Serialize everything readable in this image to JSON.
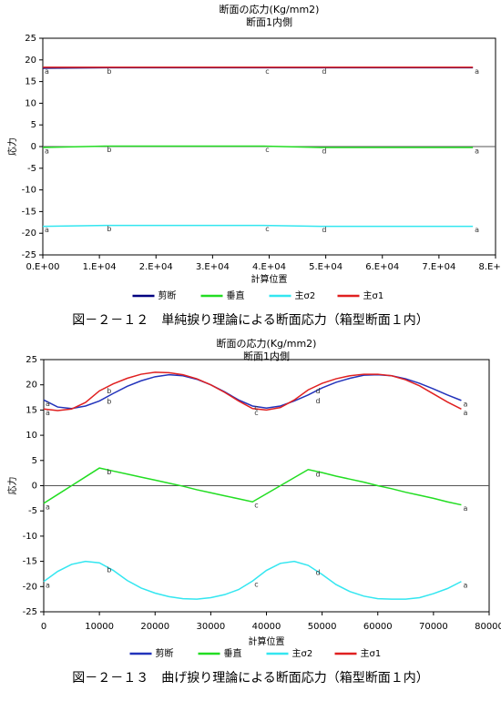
{
  "chart_data": [
    {
      "type": "line",
      "title": "断面の応力(Kg/mm2)",
      "subtitle": "断面1内側",
      "x_label": "計算位置",
      "y_label": "応力",
      "caption": "図－２－１２　単純捩り理論による断面応力（箱型断面１内）",
      "x": [
        0,
        11000,
        39000,
        49000,
        76000
      ],
      "series": [
        {
          "name": "剪断",
          "color": "#000080",
          "values": [
            18.1,
            18.2,
            18.2,
            18.2,
            18.2
          ]
        },
        {
          "name": "垂直",
          "color": "#22dd22",
          "values": [
            -0.2,
            0.1,
            0.1,
            -0.2,
            -0.2
          ]
        },
        {
          "name": "主σ2",
          "color": "#33e6f0",
          "values": [
            -18.4,
            -18.2,
            -18.2,
            -18.4,
            -18.4
          ]
        },
        {
          "name": "主σ1",
          "color": "#e02020",
          "values": [
            18.3,
            18.3,
            18.3,
            18.3,
            18.3
          ]
        }
      ],
      "annotations": [
        {
          "text": "a",
          "x": 0,
          "y": 18.2
        },
        {
          "text": "a",
          "x": 0,
          "y": -0.2
        },
        {
          "text": "a",
          "x": 0,
          "y": -18.4
        },
        {
          "text": "b",
          "x": 11000,
          "y": 18.2
        },
        {
          "text": "b",
          "x": 11000,
          "y": 0.1
        },
        {
          "text": "b",
          "x": 11000,
          "y": -18.2
        },
        {
          "text": "c",
          "x": 39000,
          "y": 18.2
        },
        {
          "text": "c",
          "x": 39000,
          "y": 0.1
        },
        {
          "text": "c",
          "x": 39000,
          "y": -18.2
        },
        {
          "text": "d",
          "x": 49000,
          "y": 18.2
        },
        {
          "text": "d",
          "x": 49000,
          "y": -0.2
        },
        {
          "text": "d",
          "x": 49000,
          "y": -18.4
        },
        {
          "text": "a",
          "x": 76000,
          "y": 18.2
        },
        {
          "text": "a",
          "x": 76000,
          "y": -0.2
        },
        {
          "text": "a",
          "x": 76000,
          "y": -18.4
        }
      ],
      "xlim": [
        0,
        80000
      ],
      "xticks": [
        {
          "value": 0,
          "label": "0.E+00"
        },
        {
          "value": 10000,
          "label": "1.E+04"
        },
        {
          "value": 20000,
          "label": "2.E+04"
        },
        {
          "value": 30000,
          "label": "3.E+04"
        },
        {
          "value": 40000,
          "label": "4.E+04"
        },
        {
          "value": 50000,
          "label": "5.E+04"
        },
        {
          "value": 60000,
          "label": "6.E+04"
        },
        {
          "value": 70000,
          "label": "7.E+04"
        },
        {
          "value": 80000,
          "label": "8.E+04"
        }
      ],
      "ylim": [
        -25,
        25
      ],
      "yticks": [
        -25,
        -20,
        -15,
        -10,
        -5,
        0,
        5,
        10,
        15,
        20,
        25
      ]
    },
    {
      "type": "line",
      "title": "断面の応力(Kg/mm2)",
      "subtitle": "断面1内側",
      "x_label": "計算位置",
      "y_label": "応力",
      "caption": "図－２－１３　曲げ捩り理論による断面応力（箱型断面１内）",
      "x": [
        0,
        2500,
        5000,
        7500,
        10000,
        12500,
        15000,
        17500,
        20000,
        22500,
        25000,
        27500,
        30000,
        32500,
        35000,
        37500,
        40000,
        42500,
        45000,
        47500,
        50000,
        52500,
        55000,
        57500,
        60000,
        62500,
        65000,
        67500,
        70000,
        72500,
        75000
      ],
      "series": [
        {
          "name": "剪断",
          "color": "#2233bb",
          "values": [
            17,
            15.6,
            15.3,
            15.8,
            16.8,
            18.3,
            19.7,
            20.8,
            21.6,
            22.0,
            21.8,
            21.1,
            20.0,
            18.6,
            17.0,
            15.8,
            15.4,
            15.8,
            16.8,
            18.0,
            19.4,
            20.5,
            21.3,
            21.9,
            22.0,
            21.8,
            21.2,
            20.3,
            19.2,
            18.0,
            16.9
          ]
        },
        {
          "name": "垂直",
          "color": "#22dd22",
          "values": [
            -3.5,
            -1.75,
            0,
            1.75,
            3.5,
            2.9,
            2.3,
            1.7,
            1.1,
            0.5,
            -0.1,
            -0.8,
            -1.4,
            -2.0,
            -2.6,
            -3.2,
            -1.6,
            0,
            1.6,
            3.2,
            2.6,
            1.9,
            1.3,
            0.7,
            0,
            -0.6,
            -1.3,
            -1.9,
            -2.5,
            -3.2,
            -3.8
          ]
        },
        {
          "name": "主σ2",
          "color": "#33e6f0",
          "values": [
            -19.0,
            -17.0,
            -15.6,
            -15.0,
            -15.3,
            -16.8,
            -18.8,
            -20.3,
            -21.3,
            -22.0,
            -22.4,
            -22.5,
            -22.2,
            -21.6,
            -20.6,
            -18.9,
            -16.8,
            -15.4,
            -15.0,
            -15.8,
            -17.6,
            -19.6,
            -21.0,
            -21.9,
            -22.4,
            -22.5,
            -22.5,
            -22.2,
            -21.4,
            -20.4,
            -19.0
          ]
        },
        {
          "name": "主σ1",
          "color": "#e02020",
          "values": [
            15.2,
            14.9,
            15.2,
            16.5,
            18.8,
            20.2,
            21.3,
            22.1,
            22.5,
            22.4,
            22.0,
            21.2,
            20.0,
            18.5,
            16.8,
            15.3,
            15.0,
            15.5,
            17.0,
            19.0,
            20.3,
            21.2,
            21.8,
            22.1,
            22.1,
            21.8,
            21.0,
            19.8,
            18.2,
            16.6,
            15.2
          ]
        }
      ],
      "annotations": [
        {
          "text": "a",
          "x": 0,
          "y": 17
        },
        {
          "text": "a",
          "x": 0,
          "y": 15.2
        },
        {
          "text": "a",
          "x": 0,
          "y": -3.5
        },
        {
          "text": "a",
          "x": 0,
          "y": -19
        },
        {
          "text": "b",
          "x": 11000,
          "y": 19.5
        },
        {
          "text": "b",
          "x": 11000,
          "y": 17.4
        },
        {
          "text": "b",
          "x": 11000,
          "y": 3.4
        },
        {
          "text": "b",
          "x": 11000,
          "y": -16
        },
        {
          "text": "c",
          "x": 37500,
          "y": 16.2
        },
        {
          "text": "c",
          "x": 37500,
          "y": 15.2
        },
        {
          "text": "c",
          "x": 37500,
          "y": -3.2
        },
        {
          "text": "c",
          "x": 37500,
          "y": -18.9
        },
        {
          "text": "d",
          "x": 48500,
          "y": 19.5
        },
        {
          "text": "d",
          "x": 48500,
          "y": 17.5
        },
        {
          "text": "d",
          "x": 48500,
          "y": 3.0
        },
        {
          "text": "d",
          "x": 48500,
          "y": -16.5
        },
        {
          "text": "a",
          "x": 75000,
          "y": 16.9
        },
        {
          "text": "a",
          "x": 75000,
          "y": 15.2
        },
        {
          "text": "a",
          "x": 75000,
          "y": -3.8
        },
        {
          "text": "a",
          "x": 75000,
          "y": -19
        }
      ],
      "xlim": [
        0,
        80000
      ],
      "xticks": [
        0,
        10000,
        20000,
        30000,
        40000,
        50000,
        60000,
        70000,
        80000
      ],
      "ylim": [
        -25,
        25
      ],
      "yticks": [
        -25,
        -20,
        -15,
        -10,
        -5,
        0,
        5,
        10,
        15,
        20,
        25
      ]
    }
  ]
}
